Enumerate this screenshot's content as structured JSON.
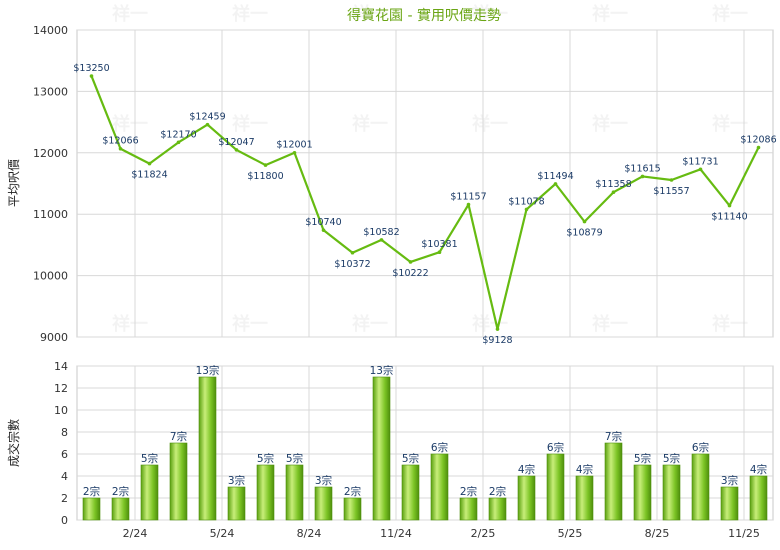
{
  "chart_data": [
    {
      "type": "line",
      "title": "得寶花園 - 實用呎價走勢",
      "ylabel": "平均呎價",
      "ylim": [
        9000,
        14000
      ],
      "yticks": [
        9000,
        10000,
        11000,
        12000,
        13000,
        14000
      ],
      "grid": true,
      "line_color": "#66bb11",
      "values": [
        13250,
        12066,
        11824,
        12170,
        12459,
        12047,
        11800,
        12001,
        10740,
        10372,
        10582,
        10222,
        10381,
        11157,
        9128,
        11078,
        11494,
        10879,
        11358,
        11615,
        11557,
        11731,
        11140,
        12086
      ],
      "value_labels": [
        "$13250",
        "$12066",
        "$11824",
        "$12170",
        "$12459",
        "$12047",
        "$11800",
        "$12001",
        "$10740",
        "$10372",
        "$10582",
        "$10222",
        "$10381",
        "$11157",
        "$9128",
        "$11078",
        "$11494",
        "$10879",
        "$11358",
        "$11615",
        "$11557",
        "$11731",
        "$11140",
        "$12086"
      ]
    },
    {
      "type": "bar",
      "ylabel": "成交宗數",
      "ylim": [
        0,
        14
      ],
      "yticks": [
        0,
        2,
        4,
        6,
        8,
        10,
        12,
        14
      ],
      "grid": true,
      "bar_color": "#7cc425",
      "values": [
        2,
        2,
        5,
        7,
        13,
        3,
        5,
        5,
        3,
        2,
        13,
        5,
        6,
        2,
        2,
        4,
        6,
        4,
        7,
        5,
        5,
        6,
        3,
        4
      ],
      "value_labels": [
        "2宗",
        "2宗",
        "5宗",
        "7宗",
        "13宗",
        "3宗",
        "5宗",
        "5宗",
        "3宗",
        "2宗",
        "13宗",
        "5宗",
        "6宗",
        "2宗",
        "2宗",
        "4宗",
        "6宗",
        "4宗",
        "7宗",
        "5宗",
        "5宗",
        "6宗",
        "3宗",
        "4宗"
      ],
      "x_tick_labels": [
        {
          "index": 2,
          "label": "2/24"
        },
        {
          "index": 5,
          "label": "5/24"
        },
        {
          "index": 8,
          "label": "8/24"
        },
        {
          "index": 11,
          "label": "11/24"
        },
        {
          "index": 14,
          "label": "2/25"
        },
        {
          "index": 17,
          "label": "5/25"
        },
        {
          "index": 20,
          "label": "8/25"
        },
        {
          "index": 23,
          "label": "11/25"
        }
      ]
    }
  ],
  "watermark": "祥一"
}
